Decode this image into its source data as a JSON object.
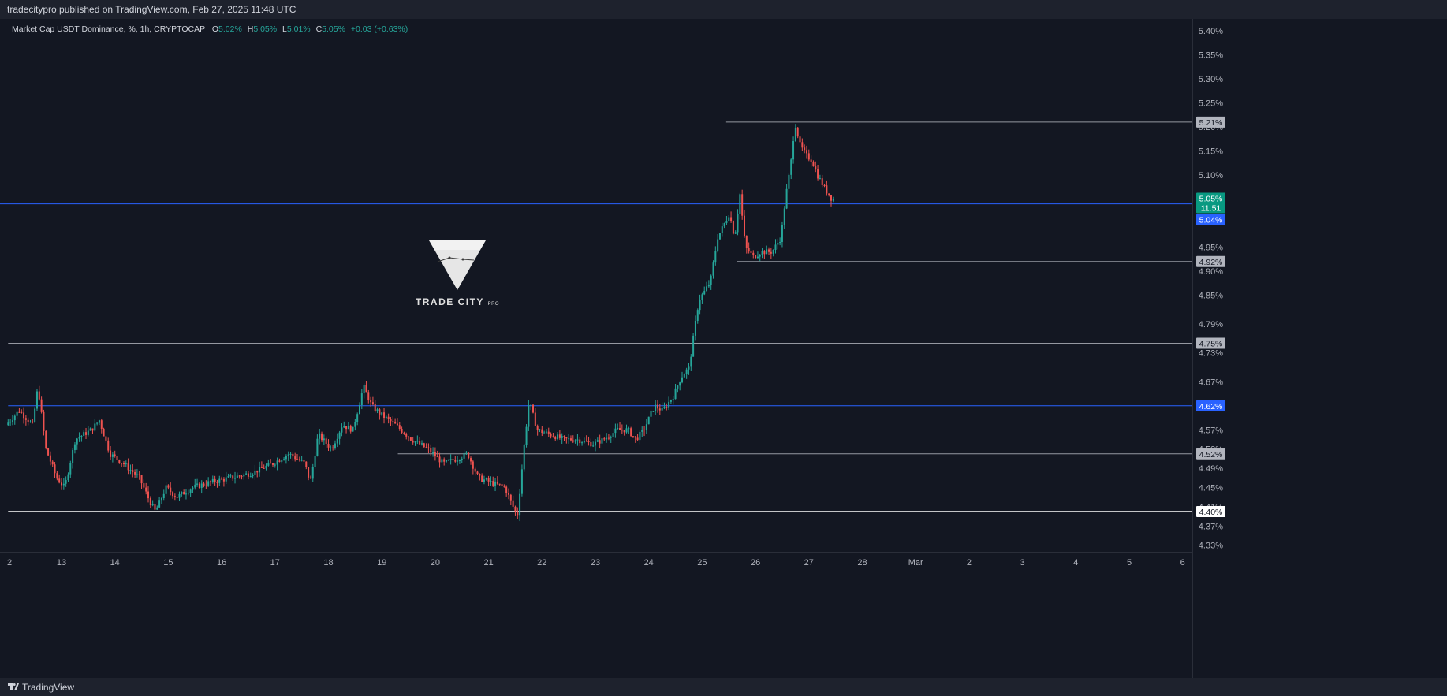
{
  "header": {
    "published": "tradecitypro published on TradingView.com, Feb 27, 2025 11:48 UTC"
  },
  "legend": {
    "symbol": "Market Cap USDT Dominance, %, 1h, CRYPTOCAP",
    "o_label": "O",
    "o_value": "5.02%",
    "h_label": "H",
    "h_value": "5.05%",
    "l_label": "L",
    "l_value": "5.01%",
    "c_label": "C",
    "c_value": "5.05%",
    "change": "+0.03 (+0.63%)"
  },
  "watermark": {
    "brand": "TRADE CITY",
    "suffix": "PRO"
  },
  "footer": {
    "brand": "TradingView"
  },
  "colors": {
    "background": "#131722",
    "up": "#26a69a",
    "down": "#ef5350",
    "accent_blue": "#2962ff",
    "level_gray": "#9598a1",
    "current_price_bg": "#089981"
  },
  "chart_data": {
    "type": "candlestick",
    "title": "Market Cap USDT Dominance, %, 1h, CRYPTOCAP",
    "y_unit": "%",
    "y_ticks": [
      "5.40%",
      "5.35%",
      "5.30%",
      "5.25%",
      "5.20%",
      "5.15%",
      "5.10%",
      "4.95%",
      "4.90%",
      "4.85%",
      "4.79%",
      "4.73%",
      "4.67%",
      "4.57%",
      "4.53%",
      "4.49%",
      "4.45%",
      "4.41%",
      "4.37%",
      "4.33%"
    ],
    "x_ticks": [
      "2",
      "13",
      "14",
      "15",
      "16",
      "17",
      "18",
      "19",
      "20",
      "21",
      "22",
      "23",
      "24",
      "25",
      "26",
      "27",
      "28",
      "Mar",
      "2",
      "3",
      "4",
      "5",
      "6"
    ],
    "ylim": [
      4.315,
      5.415
    ],
    "grid": false,
    "price_path": [
      [
        12.0,
        4.58
      ],
      [
        12.25,
        4.61
      ],
      [
        12.5,
        4.58
      ],
      [
        12.6,
        4.66
      ],
      [
        12.75,
        4.53
      ],
      [
        12.95,
        4.47
      ],
      [
        13.1,
        4.45
      ],
      [
        13.3,
        4.55
      ],
      [
        13.6,
        4.57
      ],
      [
        13.75,
        4.59
      ],
      [
        13.95,
        4.52
      ],
      [
        14.2,
        4.5
      ],
      [
        14.5,
        4.47
      ],
      [
        14.7,
        4.42
      ],
      [
        14.8,
        4.4
      ],
      [
        15.0,
        4.45
      ],
      [
        15.2,
        4.43
      ],
      [
        15.5,
        4.45
      ],
      [
        15.8,
        4.46
      ],
      [
        16.2,
        4.47
      ],
      [
        16.6,
        4.48
      ],
      [
        17.0,
        4.5
      ],
      [
        17.3,
        4.52
      ],
      [
        17.6,
        4.5
      ],
      [
        17.7,
        4.46
      ],
      [
        17.85,
        4.56
      ],
      [
        18.1,
        4.53
      ],
      [
        18.3,
        4.58
      ],
      [
        18.5,
        4.57
      ],
      [
        18.7,
        4.66
      ],
      [
        18.85,
        4.62
      ],
      [
        19.05,
        4.6
      ],
      [
        19.3,
        4.58
      ],
      [
        19.6,
        4.55
      ],
      [
        19.9,
        4.53
      ],
      [
        20.2,
        4.5
      ],
      [
        20.45,
        4.51
      ],
      [
        20.65,
        4.52
      ],
      [
        20.85,
        4.47
      ],
      [
        21.1,
        4.46
      ],
      [
        21.35,
        4.45
      ],
      [
        21.5,
        4.41
      ],
      [
        21.58,
        4.39
      ],
      [
        21.72,
        4.55
      ],
      [
        21.8,
        4.63
      ],
      [
        21.95,
        4.57
      ],
      [
        22.2,
        4.56
      ],
      [
        22.45,
        4.55
      ],
      [
        22.7,
        4.55
      ],
      [
        23.0,
        4.54
      ],
      [
        23.2,
        4.55
      ],
      [
        23.45,
        4.57
      ],
      [
        23.65,
        4.57
      ],
      [
        23.8,
        4.55
      ],
      [
        23.95,
        4.57
      ],
      [
        24.15,
        4.62
      ],
      [
        24.3,
        4.61
      ],
      [
        24.5,
        4.64
      ],
      [
        24.65,
        4.68
      ],
      [
        24.8,
        4.7
      ],
      [
        24.9,
        4.78
      ],
      [
        24.98,
        4.84
      ],
      [
        25.1,
        4.86
      ],
      [
        25.2,
        4.88
      ],
      [
        25.33,
        4.97
      ],
      [
        25.42,
        4.99
      ],
      [
        25.55,
        5.02
      ],
      [
        25.65,
        4.97
      ],
      [
        25.75,
        5.06
      ],
      [
        25.85,
        4.95
      ],
      [
        26.0,
        4.93
      ],
      [
        26.15,
        4.94
      ],
      [
        26.35,
        4.94
      ],
      [
        26.52,
        4.97
      ],
      [
        26.6,
        5.05
      ],
      [
        26.7,
        5.12
      ],
      [
        26.78,
        5.21
      ],
      [
        26.88,
        5.16
      ],
      [
        27.0,
        5.14
      ],
      [
        27.1,
        5.13
      ],
      [
        27.2,
        5.1
      ],
      [
        27.35,
        5.07
      ],
      [
        27.47,
        5.05
      ]
    ],
    "levels": [
      {
        "price": 5.21,
        "label": "5.21%",
        "style": "gray",
        "x_start": 25.45
      },
      {
        "price": 4.92,
        "label": "4.92%",
        "style": "gray",
        "x_start": 25.65
      },
      {
        "price": 4.75,
        "label": "4.75%",
        "style": "gray",
        "x_start": 12.0
      },
      {
        "price": 4.62,
        "label": "4.62%",
        "style": "blue",
        "x_start": 12.0
      },
      {
        "price": 4.52,
        "label": "4.52%",
        "style": "gray",
        "x_start": 19.3
      },
      {
        "price": 4.4,
        "label": "4.40%",
        "style": "white",
        "x_start": 12.0
      }
    ],
    "current_price": {
      "price": 5.05,
      "label": "5.05%",
      "countdown": "11:51"
    },
    "prior_price": {
      "price": 5.04,
      "label": "5.04%"
    }
  }
}
